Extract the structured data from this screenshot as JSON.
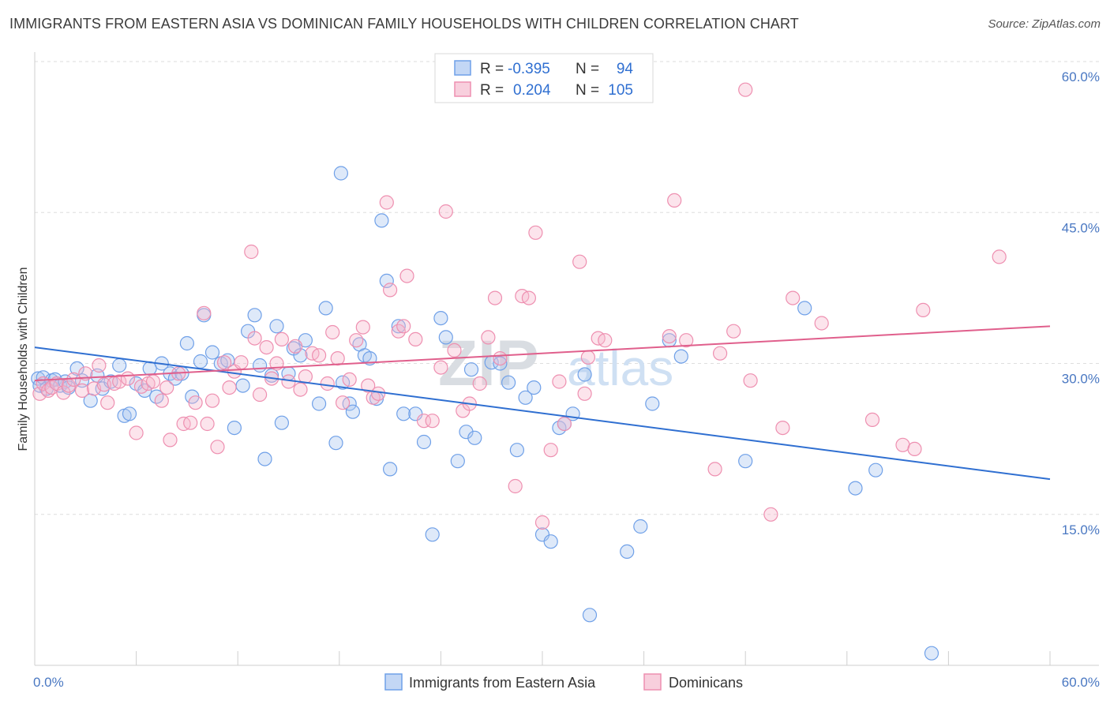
{
  "title": "IMMIGRANTS FROM EASTERN ASIA VS DOMINICAN FAMILY HOUSEHOLDS WITH CHILDREN CORRELATION CHART",
  "source": "Source: ZipAtlas.com",
  "watermark": {
    "zip": "ZIP",
    "atlas": "atlas"
  },
  "stats": {
    "r_label": "R =",
    "n_label": "N =",
    "rows": [
      {
        "r": "-0.395",
        "n": "94",
        "color": "#6fa0e8"
      },
      {
        "r": "0.204",
        "n": "105",
        "color": "#ee8fb0"
      }
    ]
  },
  "legend": [
    {
      "label": "Immigrants from Eastern Asia",
      "color": "#6fa0e8"
    },
    {
      "label": "Dominicans",
      "color": "#ee8fb0"
    }
  ],
  "chart_data": {
    "type": "scatter",
    "xlabel": "",
    "ylabel": "Family Households with Children",
    "xlim": [
      0,
      60
    ],
    "ylim": [
      0,
      60
    ],
    "x_tick_labels": [
      {
        "value": 0,
        "label": "0.0%"
      },
      {
        "value": 60,
        "label": "60.0%"
      }
    ],
    "y_tick_labels": [
      {
        "value": 15,
        "label": "15.0%"
      },
      {
        "value": 30,
        "label": "30.0%"
      },
      {
        "value": 45,
        "label": "45.0%"
      },
      {
        "value": 60,
        "label": "60.0%"
      }
    ],
    "grid": "horizontal dashed",
    "legend_position": "bottom-center",
    "series": [
      {
        "name": "Immigrants from Eastern Asia",
        "color": "#6fa0e8",
        "line_color": "#2f6fd1",
        "trend": [
          [
            0,
            31.6
          ],
          [
            60,
            18.5
          ]
        ],
        "points": [
          [
            0.2,
            28.5
          ],
          [
            0.3,
            27.8
          ],
          [
            0.5,
            28.6
          ],
          [
            0.7,
            27.5
          ],
          [
            1.0,
            28.3
          ],
          [
            1.2,
            28.4
          ],
          [
            1.5,
            27.8
          ],
          [
            1.8,
            28.2
          ],
          [
            2.0,
            27.6
          ],
          [
            2.5,
            29.5
          ],
          [
            2.8,
            28.3
          ],
          [
            3.3,
            26.3
          ],
          [
            3.7,
            28.8
          ],
          [
            4.0,
            27.5
          ],
          [
            4.5,
            28.2
          ],
          [
            5.0,
            29.8
          ],
          [
            5.3,
            24.8
          ],
          [
            5.6,
            25.0
          ],
          [
            6.0,
            28.0
          ],
          [
            6.5,
            27.3
          ],
          [
            6.8,
            29.5
          ],
          [
            7.2,
            26.7
          ],
          [
            7.5,
            30.0
          ],
          [
            8.0,
            29.0
          ],
          [
            8.3,
            28.5
          ],
          [
            8.7,
            29.0
          ],
          [
            9.0,
            32.0
          ],
          [
            9.3,
            26.7
          ],
          [
            9.8,
            30.2
          ],
          [
            10.0,
            34.8
          ],
          [
            10.5,
            31.1
          ],
          [
            11.0,
            30.0
          ],
          [
            11.4,
            30.3
          ],
          [
            11.8,
            23.6
          ],
          [
            12.3,
            27.8
          ],
          [
            12.6,
            33.2
          ],
          [
            13.0,
            34.8
          ],
          [
            13.3,
            29.8
          ],
          [
            13.6,
            20.5
          ],
          [
            14.0,
            28.8
          ],
          [
            14.3,
            33.7
          ],
          [
            14.6,
            24.1
          ],
          [
            15.0,
            29.0
          ],
          [
            15.3,
            31.5
          ],
          [
            15.7,
            30.8
          ],
          [
            16.0,
            32.3
          ],
          [
            16.8,
            26.0
          ],
          [
            17.2,
            35.5
          ],
          [
            17.8,
            22.1
          ],
          [
            18.2,
            28.1
          ],
          [
            18.6,
            26.0
          ],
          [
            18.8,
            25.2
          ],
          [
            19.2,
            31.9
          ],
          [
            19.5,
            30.8
          ],
          [
            19.8,
            30.5
          ],
          [
            20.2,
            26.5
          ],
          [
            20.5,
            44.2
          ],
          [
            20.8,
            38.2
          ],
          [
            21.0,
            19.5
          ],
          [
            21.5,
            33.7
          ],
          [
            21.8,
            25.0
          ],
          [
            22.5,
            25.0
          ],
          [
            23.0,
            22.2
          ],
          [
            23.5,
            13.0
          ],
          [
            24.0,
            34.5
          ],
          [
            24.3,
            32.6
          ],
          [
            25.0,
            20.3
          ],
          [
            25.5,
            23.2
          ],
          [
            25.8,
            29.4
          ],
          [
            26.0,
            22.6
          ],
          [
            27.0,
            30.1
          ],
          [
            27.5,
            30.0
          ],
          [
            28.0,
            28.1
          ],
          [
            28.5,
            21.4
          ],
          [
            29.0,
            26.6
          ],
          [
            29.5,
            27.6
          ],
          [
            30.0,
            13.0
          ],
          [
            30.5,
            12.3
          ],
          [
            31.0,
            23.6
          ],
          [
            31.3,
            24.0
          ],
          [
            31.8,
            25.0
          ],
          [
            32.5,
            28.9
          ],
          [
            32.8,
            5.0
          ],
          [
            35.0,
            11.3
          ],
          [
            35.8,
            13.8
          ],
          [
            36.5,
            26.0
          ],
          [
            37.5,
            32.3
          ],
          [
            38.2,
            30.7
          ],
          [
            42.0,
            20.3
          ],
          [
            45.5,
            35.5
          ],
          [
            48.5,
            17.6
          ],
          [
            49.7,
            19.4
          ],
          [
            53.0,
            1.2
          ],
          [
            18.1,
            48.9
          ]
        ]
      },
      {
        "name": "Dominicans",
        "color": "#ee8fb0",
        "line_color": "#e05f8c",
        "trend": [
          [
            0,
            28.3
          ],
          [
            60,
            33.7
          ]
        ],
        "points": [
          [
            0.3,
            27.0
          ],
          [
            0.5,
            28.0
          ],
          [
            0.8,
            27.3
          ],
          [
            1.0,
            27.6
          ],
          [
            1.3,
            28.0
          ],
          [
            1.7,
            27.1
          ],
          [
            2.0,
            27.8
          ],
          [
            2.3,
            28.4
          ],
          [
            2.8,
            27.3
          ],
          [
            3.0,
            29.0
          ],
          [
            3.5,
            27.5
          ],
          [
            3.8,
            29.8
          ],
          [
            4.1,
            27.9
          ],
          [
            4.3,
            26.1
          ],
          [
            4.7,
            28.0
          ],
          [
            5.0,
            28.2
          ],
          [
            5.5,
            28.5
          ],
          [
            6.0,
            23.1
          ],
          [
            6.3,
            27.7
          ],
          [
            6.7,
            28.0
          ],
          [
            7.0,
            28.2
          ],
          [
            7.5,
            26.3
          ],
          [
            7.8,
            27.6
          ],
          [
            8.0,
            22.4
          ],
          [
            8.5,
            29.0
          ],
          [
            8.8,
            24.0
          ],
          [
            9.2,
            24.1
          ],
          [
            9.5,
            26.1
          ],
          [
            10.0,
            35.0
          ],
          [
            10.2,
            24.0
          ],
          [
            10.5,
            26.3
          ],
          [
            10.8,
            21.7
          ],
          [
            11.2,
            30.1
          ],
          [
            11.5,
            27.6
          ],
          [
            11.8,
            29.2
          ],
          [
            12.2,
            30.1
          ],
          [
            12.8,
            41.1
          ],
          [
            13.0,
            32.5
          ],
          [
            13.3,
            26.9
          ],
          [
            13.7,
            31.6
          ],
          [
            14.0,
            28.5
          ],
          [
            14.3,
            30.0
          ],
          [
            14.6,
            32.4
          ],
          [
            15.0,
            28.2
          ],
          [
            15.4,
            31.7
          ],
          [
            15.7,
            27.4
          ],
          [
            16.0,
            28.7
          ],
          [
            16.4,
            31.0
          ],
          [
            16.8,
            30.8
          ],
          [
            17.3,
            28.0
          ],
          [
            17.6,
            33.1
          ],
          [
            17.9,
            30.5
          ],
          [
            18.2,
            26.1
          ],
          [
            18.6,
            28.4
          ],
          [
            19.0,
            32.3
          ],
          [
            19.4,
            33.6
          ],
          [
            19.7,
            27.8
          ],
          [
            20.0,
            26.6
          ],
          [
            20.3,
            27.0
          ],
          [
            20.8,
            46.0
          ],
          [
            21.0,
            37.3
          ],
          [
            21.5,
            33.2
          ],
          [
            21.8,
            33.7
          ],
          [
            22.0,
            38.7
          ],
          [
            22.5,
            32.4
          ],
          [
            23.0,
            24.3
          ],
          [
            23.5,
            24.3
          ],
          [
            24.0,
            29.6
          ],
          [
            24.3,
            45.1
          ],
          [
            24.8,
            31.3
          ],
          [
            25.3,
            25.3
          ],
          [
            25.7,
            26.0
          ],
          [
            26.3,
            28.0
          ],
          [
            26.8,
            32.6
          ],
          [
            27.2,
            36.5
          ],
          [
            27.5,
            30.5
          ],
          [
            28.4,
            17.8
          ],
          [
            28.8,
            36.7
          ],
          [
            29.2,
            36.5
          ],
          [
            29.6,
            43.0
          ],
          [
            30.0,
            14.2
          ],
          [
            30.5,
            21.4
          ],
          [
            31.0,
            28.2
          ],
          [
            31.3,
            24.0
          ],
          [
            32.2,
            40.1
          ],
          [
            32.5,
            27.0
          ],
          [
            32.7,
            30.6
          ],
          [
            33.3,
            32.5
          ],
          [
            33.7,
            32.3
          ],
          [
            37.5,
            32.7
          ],
          [
            37.8,
            46.2
          ],
          [
            38.5,
            32.3
          ],
          [
            40.2,
            19.5
          ],
          [
            40.5,
            31.0
          ],
          [
            41.3,
            33.2
          ],
          [
            42.0,
            57.2
          ],
          [
            42.3,
            28.3
          ],
          [
            43.5,
            15.0
          ],
          [
            44.2,
            23.6
          ],
          [
            44.8,
            36.5
          ],
          [
            46.5,
            34.0
          ],
          [
            49.5,
            24.4
          ],
          [
            51.3,
            21.9
          ],
          [
            52.0,
            21.5
          ],
          [
            52.5,
            35.3
          ],
          [
            57.0,
            40.6
          ]
        ]
      }
    ]
  }
}
